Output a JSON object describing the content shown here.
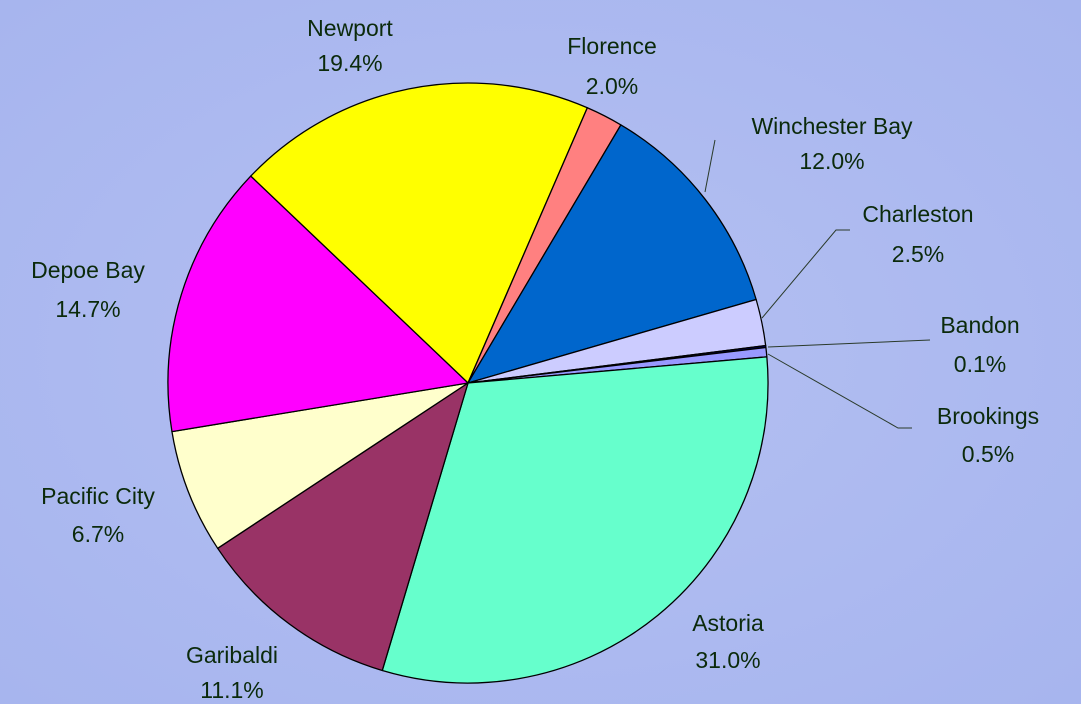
{
  "chart_data": {
    "type": "pie",
    "categories": [
      "Newport",
      "Florence",
      "Winchester Bay",
      "Charleston",
      "Bandon",
      "Brookings",
      "Astoria",
      "Garibaldi",
      "Pacific City",
      "Depoe Bay"
    ],
    "values": [
      19.4,
      2.0,
      12.0,
      2.5,
      0.1,
      0.5,
      31.0,
      11.1,
      6.7,
      14.7
    ],
    "value_labels": [
      "19.4%",
      "2.0%",
      "12.0%",
      "2.5%",
      "0.1%",
      "0.5%",
      "31.0%",
      "11.1%",
      "6.7%",
      "14.7%"
    ],
    "colors": [
      "#ffff00",
      "#ff8080",
      "#0066cc",
      "#ccccff",
      "#000080",
      "#9999ff",
      "#66ffcc",
      "#993366",
      "#ffffcc",
      "#ff00ff"
    ]
  }
}
